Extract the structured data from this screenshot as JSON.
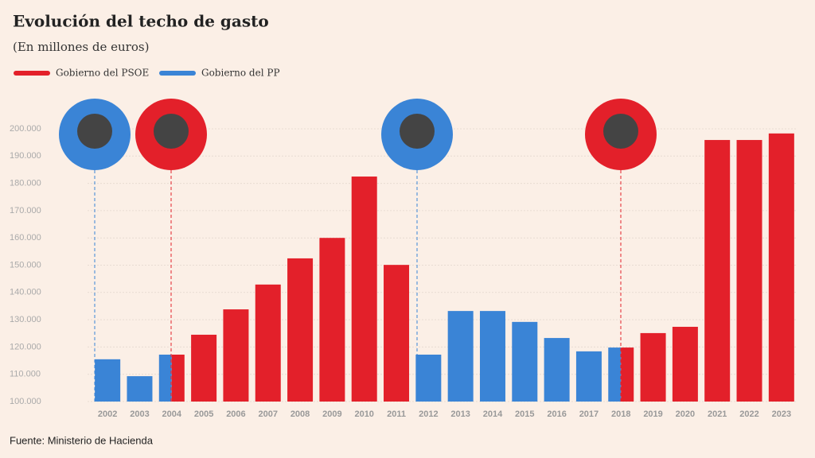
{
  "chart_data": {
    "type": "bar",
    "title": "Evolución del techo de gasto",
    "subtitle": "(En millones de euros)",
    "source": "Fuente: Ministerio de Hacienda",
    "categories": [
      "2002",
      "2003",
      "2004",
      "2005",
      "2006",
      "2007",
      "2008",
      "2009",
      "2010",
      "2011",
      "2012",
      "2013",
      "2014",
      "2015",
      "2016",
      "2017",
      "2018",
      "2019",
      "2020",
      "2021",
      "2022",
      "2023"
    ],
    "series": [
      {
        "name": "Gobierno del PSOE",
        "color": "#e3202a",
        "values": [
          null,
          null,
          117200,
          124500,
          133800,
          142900,
          152500,
          160000,
          182500,
          150100,
          null,
          null,
          null,
          null,
          null,
          null,
          119800,
          125100,
          127400,
          195900,
          195900,
          198300
        ]
      },
      {
        "name": "Gobierno del PP",
        "color": "#3a84d6",
        "values": [
          115500,
          109300,
          117200,
          null,
          null,
          null,
          null,
          null,
          null,
          null,
          117200,
          133200,
          133200,
          129200,
          123300,
          118400,
          119800,
          null,
          null,
          null,
          null,
          null
        ]
      }
    ],
    "ylim": [
      100000,
      200000
    ],
    "yticks": [
      {
        "value": 100000,
        "label": "100.000"
      },
      {
        "value": 110000,
        "label": "110.000"
      },
      {
        "value": 120000,
        "label": "120.000"
      },
      {
        "value": 130000,
        "label": "130.000"
      },
      {
        "value": 140000,
        "label": "140.000"
      },
      {
        "value": 150000,
        "label": "150.000"
      },
      {
        "value": 160000,
        "label": "160.000"
      },
      {
        "value": 170000,
        "label": "170.000"
      },
      {
        "value": 180000,
        "label": "180.000"
      },
      {
        "value": 190000,
        "label": "190.000"
      },
      {
        "value": 200000,
        "label": "200.000"
      }
    ],
    "grid": true,
    "legend": "top-left"
  }
}
